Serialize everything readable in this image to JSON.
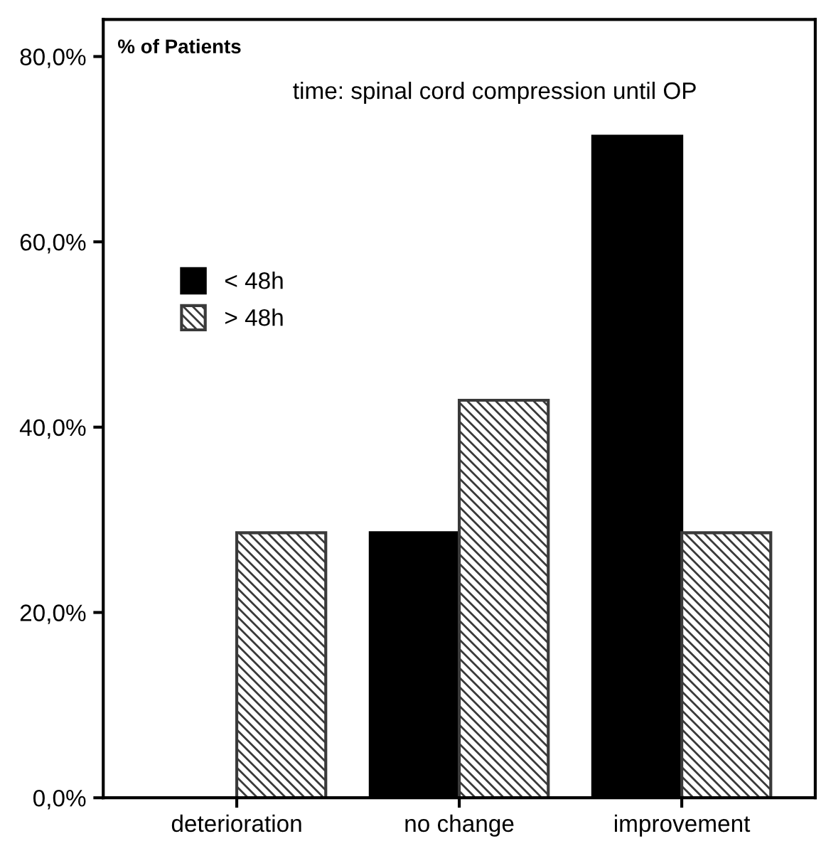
{
  "chart_data": {
    "type": "bar",
    "ylabel": "% of Patients",
    "legend_title": "time: spinal cord compression until OP",
    "categories": [
      "deterioration",
      "no change",
      "improvement"
    ],
    "series": [
      {
        "name": "< 48h",
        "color": "#000000",
        "values": [
          0,
          28.6,
          71.4
        ]
      },
      {
        "name": "> 48h",
        "color": "#3a3a3a",
        "values": [
          28.6,
          42.9,
          28.6
        ]
      }
    ],
    "ylim": [
      0,
      84
    ],
    "yticks": [
      {
        "value": 0,
        "label": "0,0%"
      },
      {
        "value": 20,
        "label": "20,0%"
      },
      {
        "value": 40,
        "label": "40,0%"
      },
      {
        "value": 60,
        "label": "60,0%"
      },
      {
        "value": 80,
        "label": "80,0%"
      }
    ],
    "legend": "left",
    "grid": false
  }
}
